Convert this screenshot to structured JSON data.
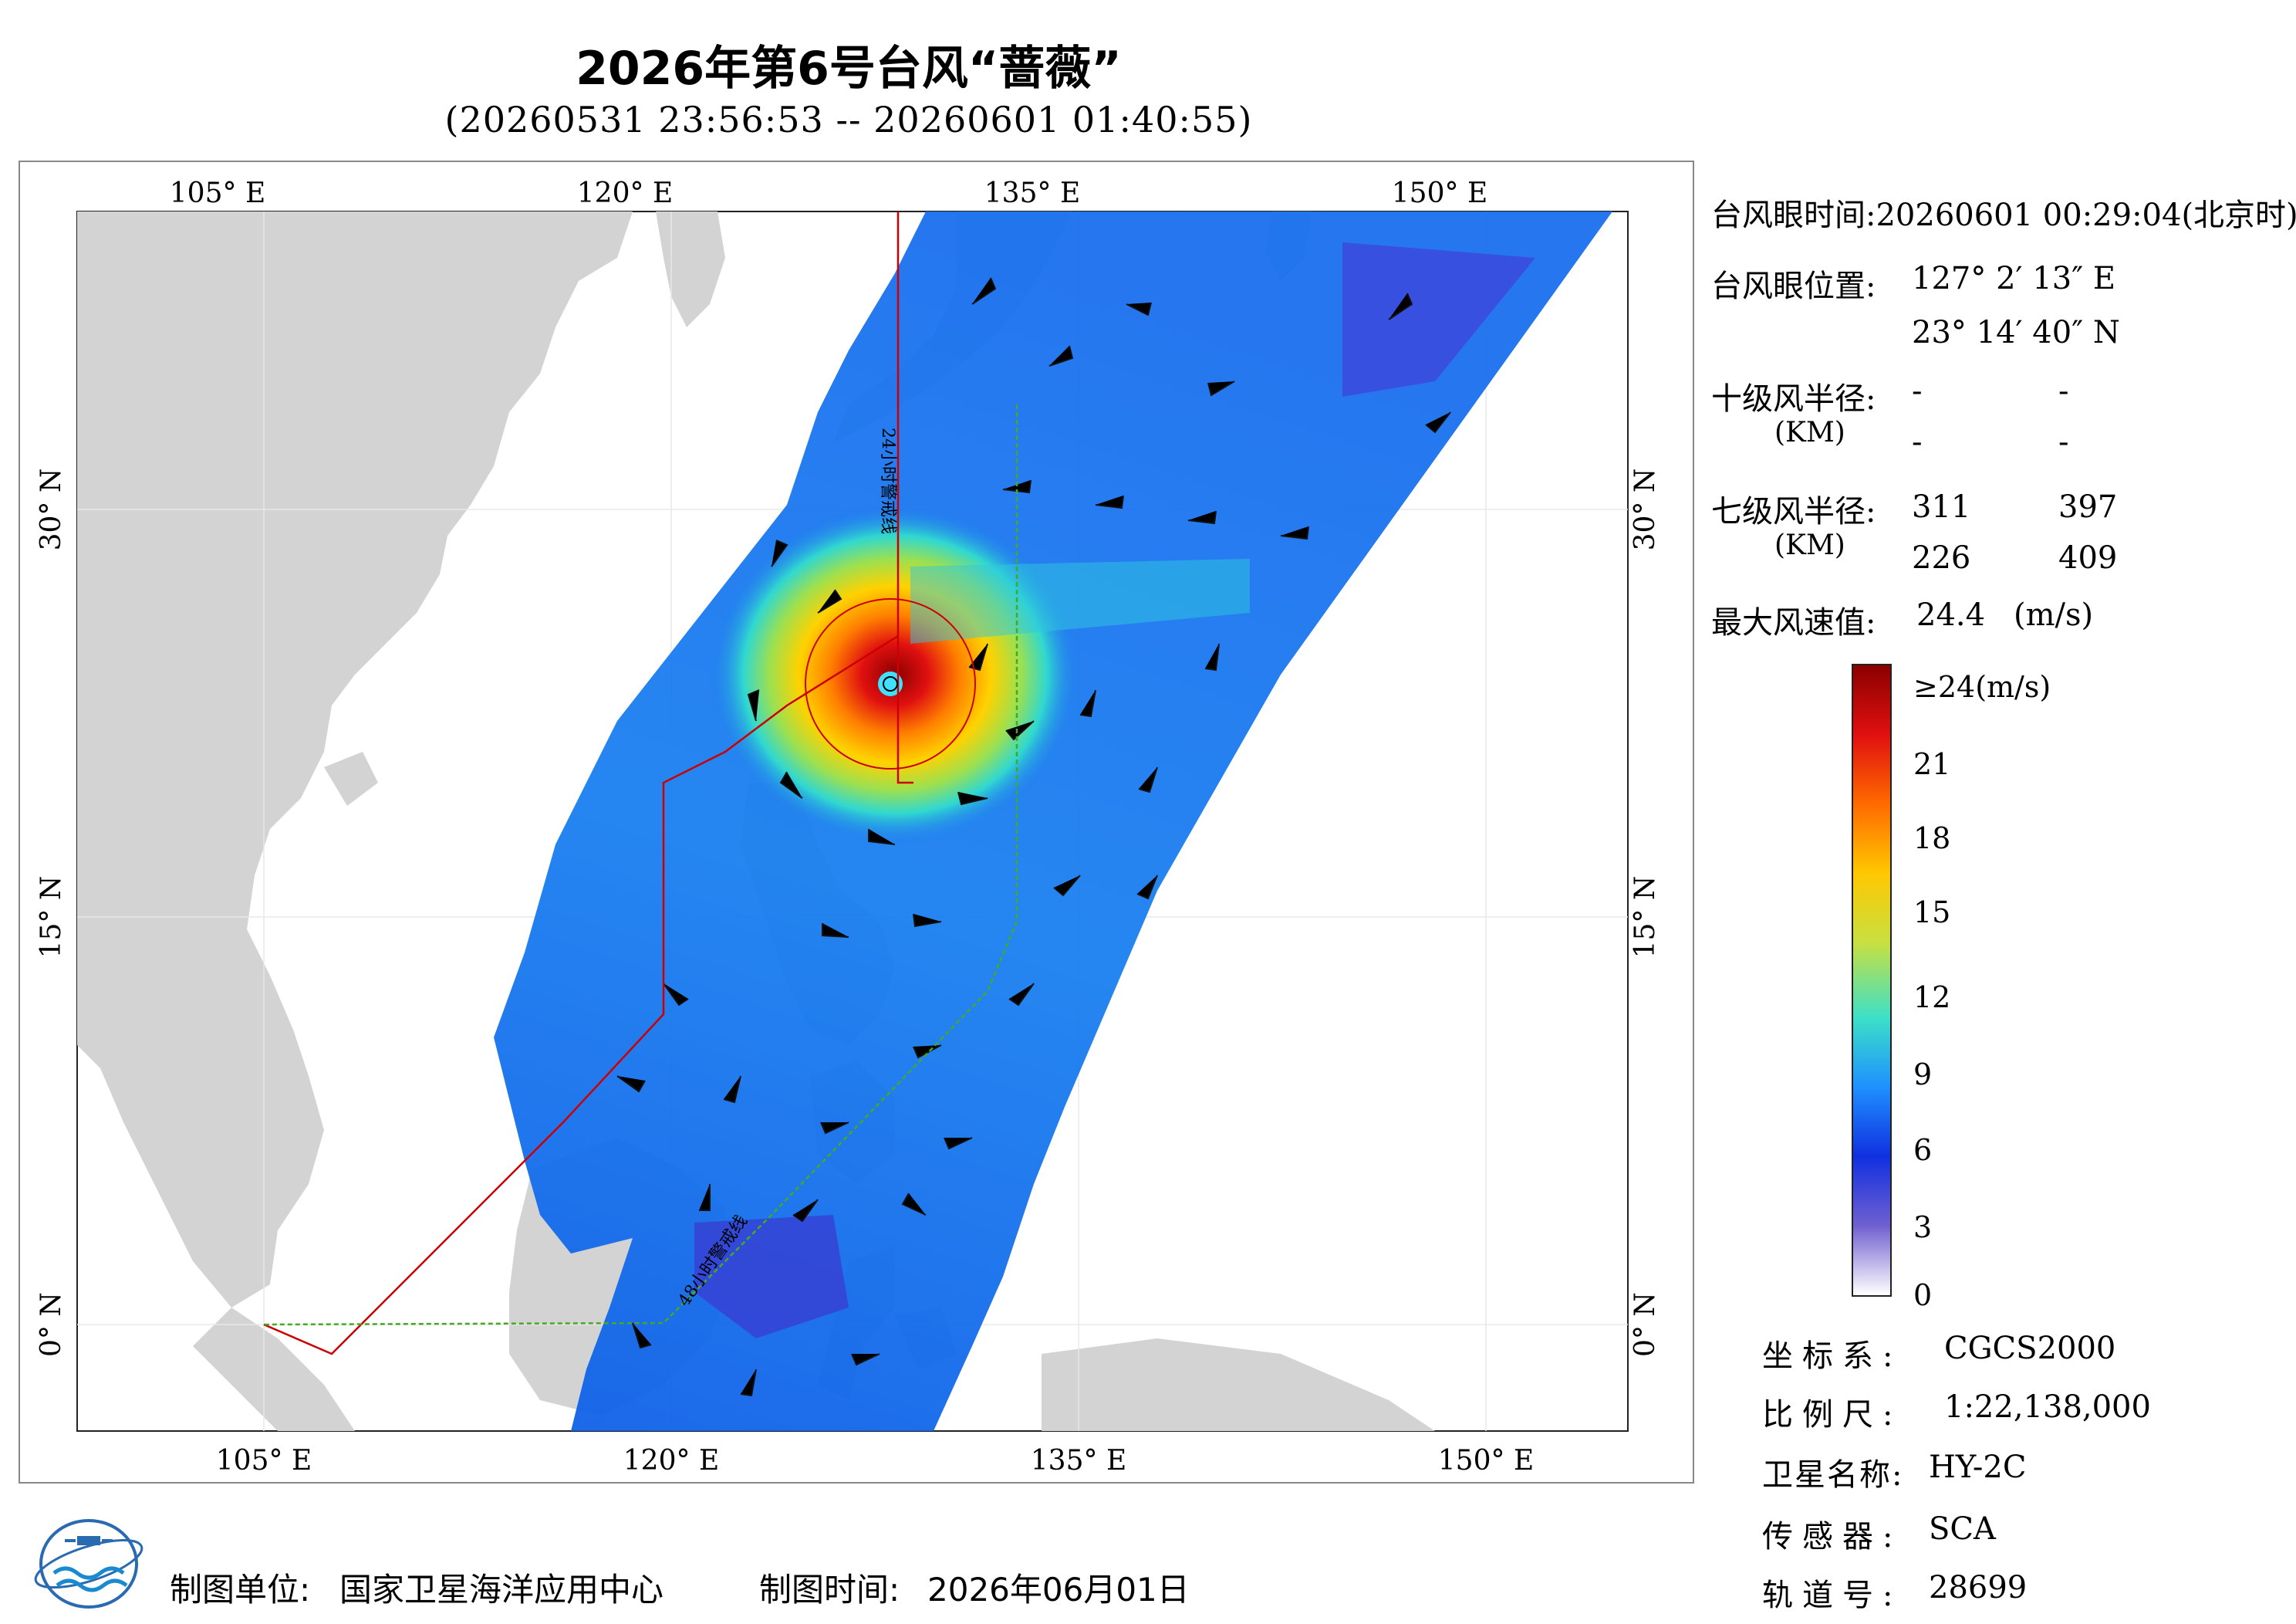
{
  "header": {
    "title": "2026年第6号台风“蔷薇”",
    "subtitle": "(20260531 23:56:53 -- 20260601 01:40:55)"
  },
  "map": {
    "lon_labels": [
      "105° E",
      "120° E",
      "135° E",
      "150° E"
    ],
    "lat_labels": [
      "30° N",
      "15° N",
      "0° N"
    ],
    "line_labels": [
      "24小时警戒线",
      "48小时警戒线"
    ],
    "colors": {
      "land": "#d3d3d3",
      "sea": "#ffffff",
      "warning_24h": "#cc0000",
      "warning_48h": "#44aa22"
    }
  },
  "info": {
    "eye_time_label": "台风眼时间:",
    "eye_time_value": "20260601 00:29:04(北京时)",
    "eye_pos_label": "台风眼位置:",
    "eye_lon": "127° 2′ 13″ E",
    "eye_lat": "23° 14′ 40″ N",
    "r10_label": "十级风半径:",
    "r10_unit": "(KM)",
    "r10_values": [
      "-",
      "-",
      "-",
      "-"
    ],
    "r7_label": "七级风半径:",
    "r7_unit": "(KM)",
    "r7_values": [
      "311",
      "397",
      "226",
      "409"
    ],
    "max_wind_label": "最大风速值:",
    "max_wind_value": "24.4",
    "max_wind_unit": "(m/s)"
  },
  "colorbar": {
    "ticks": [
      "≥24(m/s)",
      "21",
      "18",
      "15",
      "12",
      "9",
      "6",
      "3",
      "0"
    ],
    "stops": [
      "#8b0000",
      "#e01010",
      "#ff6a00",
      "#ffc800",
      "#c8e040",
      "#3ce0c8",
      "#1e90ff",
      "#1030e0",
      "#7060d0",
      "#ffffff"
    ]
  },
  "meta": {
    "crs_label": "坐标系:",
    "crs_value": "CGCS2000",
    "scale_label": "比例尺:",
    "scale_value": "1:22,138,000",
    "sat_label": "卫星名称:",
    "sat_value": "HY-2C",
    "sensor_label": "传感器:",
    "sensor_value": "SCA",
    "orbit_label": "轨道号:",
    "orbit_value": "28699"
  },
  "footer": {
    "producer_label": "制图单位:",
    "producer_value": "国家卫星海洋应用中心",
    "date_label": "制图时间:",
    "date_value": "2026年06月01日"
  }
}
